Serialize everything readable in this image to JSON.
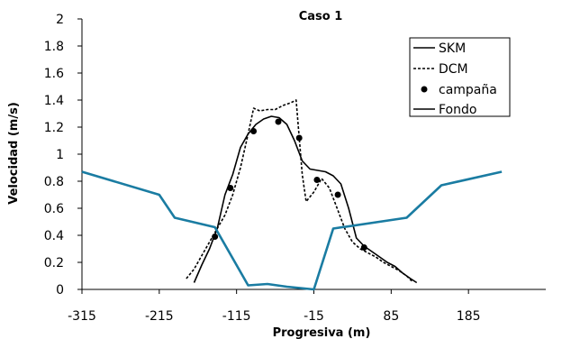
{
  "chart_data": {
    "type": "line",
    "title": "Caso 1",
    "xlabel": "Progresiva (m)",
    "ylabel": "Velocidad (m/s)",
    "xlim": [
      -315,
      285
    ],
    "ylim": [
      0,
      2
    ],
    "xticks": [
      -315,
      -215,
      -115,
      -15,
      85,
      185
    ],
    "xtick_labels": [
      "-315",
      "-215",
      "-115",
      "-15",
      "85",
      "185"
    ],
    "yticks": [
      0,
      0.2,
      0.4,
      0.6,
      0.8,
      1,
      1.2,
      1.4,
      1.6,
      1.8,
      2
    ],
    "ytick_labels": [
      "0",
      "0.2",
      "0.4",
      "0.6",
      "0.8",
      "1",
      "1.2",
      "1.4",
      "1.6",
      "1.8",
      "2"
    ],
    "grid": false,
    "legend_position": "top-right",
    "series": [
      {
        "name": "SKM",
        "color": "#000000",
        "style": "solid",
        "points": [
          [
            -170,
            0.05
          ],
          [
            -160,
            0.18
          ],
          [
            -150,
            0.3
          ],
          [
            -140,
            0.45
          ],
          [
            -130,
            0.7
          ],
          [
            -120,
            0.85
          ],
          [
            -110,
            1.05
          ],
          [
            -100,
            1.15
          ],
          [
            -90,
            1.22
          ],
          [
            -80,
            1.26
          ],
          [
            -70,
            1.28
          ],
          [
            -60,
            1.27
          ],
          [
            -50,
            1.22
          ],
          [
            -40,
            1.1
          ],
          [
            -30,
            0.95
          ],
          [
            -20,
            0.89
          ],
          [
            -10,
            0.88
          ],
          [
            0,
            0.87
          ],
          [
            10,
            0.84
          ],
          [
            20,
            0.78
          ],
          [
            30,
            0.6
          ],
          [
            40,
            0.38
          ],
          [
            50,
            0.32
          ],
          [
            60,
            0.28
          ],
          [
            70,
            0.24
          ],
          [
            80,
            0.2
          ],
          [
            90,
            0.17
          ],
          [
            100,
            0.12
          ],
          [
            110,
            0.08
          ],
          [
            118,
            0.05
          ]
        ]
      },
      {
        "name": "DCM",
        "color": "#000000",
        "style": "dashed",
        "points": [
          [
            -180,
            0.08
          ],
          [
            -170,
            0.15
          ],
          [
            -160,
            0.25
          ],
          [
            -150,
            0.35
          ],
          [
            -140,
            0.45
          ],
          [
            -130,
            0.55
          ],
          [
            -120,
            0.7
          ],
          [
            -110,
            0.9
          ],
          [
            -100,
            1.15
          ],
          [
            -93,
            1.34
          ],
          [
            -85,
            1.32
          ],
          [
            -75,
            1.33
          ],
          [
            -65,
            1.33
          ],
          [
            -55,
            1.36
          ],
          [
            -45,
            1.38
          ],
          [
            -38,
            1.4
          ],
          [
            -30,
            0.85
          ],
          [
            -25,
            0.65
          ],
          [
            -15,
            0.72
          ],
          [
            -5,
            0.82
          ],
          [
            5,
            0.75
          ],
          [
            15,
            0.6
          ],
          [
            25,
            0.45
          ],
          [
            35,
            0.35
          ],
          [
            45,
            0.3
          ],
          [
            55,
            0.27
          ],
          [
            65,
            0.24
          ],
          [
            75,
            0.2
          ],
          [
            85,
            0.17
          ],
          [
            95,
            0.14
          ],
          [
            105,
            0.1
          ],
          [
            112,
            0.06
          ]
        ]
      },
      {
        "name": "campaña",
        "color": "#000000",
        "style": "markers",
        "points": [
          [
            -143,
            0.39
          ],
          [
            -123,
            0.75
          ],
          [
            -93,
            1.17
          ],
          [
            -61,
            1.24
          ],
          [
            -34,
            1.12
          ],
          [
            -11,
            0.81
          ],
          [
            16,
            0.7
          ],
          [
            50,
            0.31
          ]
        ]
      },
      {
        "name": "Fondo",
        "color": "#1a7ca2",
        "style": "solid",
        "points": [
          [
            -315,
            0.87
          ],
          [
            -215,
            0.7
          ],
          [
            -195,
            0.53
          ],
          [
            -143,
            0.46
          ],
          [
            -100,
            0.03
          ],
          [
            -75,
            0.04
          ],
          [
            -50,
            0.02
          ],
          [
            -15,
            0.0
          ],
          [
            10,
            0.45
          ],
          [
            105,
            0.53
          ],
          [
            150,
            0.77
          ],
          [
            228,
            0.87
          ]
        ]
      }
    ]
  }
}
